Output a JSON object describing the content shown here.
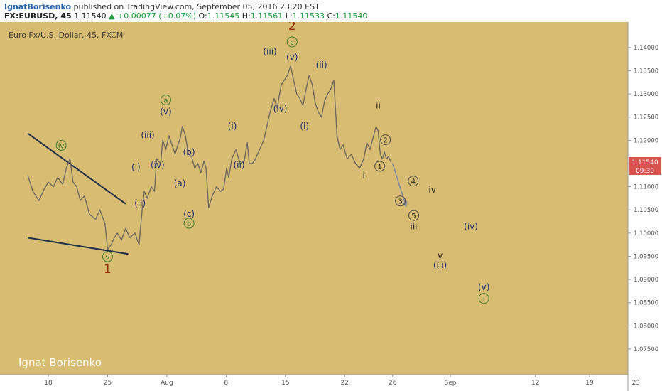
{
  "header": {
    "author": "IgnatBorisenko",
    "published_text": "published on TradingView.com, September 05, 2016 23:20 EST",
    "symbol": "FX:EURUSD, 45",
    "last": "1.11540",
    "change": "▲ +0.00077 (+0.07%)",
    "o_label": "O:",
    "o_value": "1.11545",
    "h_label": "H:",
    "h_value": "1.11561",
    "l_label": "L:",
    "l_value": "1.11533",
    "c_label": "C:",
    "c_value": "1.11540"
  },
  "chart_data": {
    "type": "line",
    "title": "Euro Fx/U.S. Dollar, 45, FXCM",
    "watermark": "Ignat Borisenko",
    "ylim": [
      1.0707,
      1.1455
    ],
    "xlim": [
      0,
      1050
    ],
    "x_ticks": [
      {
        "label": "18",
        "x": 0
      },
      {
        "label": "25",
        "x": 115
      },
      {
        "label": "Aug",
        "x": 230
      },
      {
        "label": "8",
        "x": 345
      },
      {
        "label": "15",
        "x": 460
      },
      {
        "label": "22",
        "x": 575
      },
      {
        "label": "26",
        "x": 668
      },
      {
        "label": "Sep",
        "x": 780
      },
      {
        "label": "12",
        "x": 945
      },
      {
        "label": "19",
        "x": 1050
      },
      {
        "label": "23",
        "x": 1140
      }
    ],
    "y_ticks": [
      "1.14000",
      "1.13500",
      "1.13000",
      "1.12500",
      "1.12000",
      "1.11500",
      "1.11000",
      "1.10500",
      "1.10000",
      "1.09500",
      "1.09000",
      "1.08500",
      "1.08000",
      "1.07500"
    ],
    "last_price": "1.11540",
    "countdown": "09:30",
    "colors": {
      "background": "#d8bc72",
      "candle": "#6e6a62",
      "trendline": "#1d2e4a",
      "blue_label": "#1a2f78",
      "red_label": "#9b2a0c",
      "green_label": "#3f7a2c",
      "price_tag": "#d9534f"
    },
    "series": [
      {
        "points": [
          [
            -40,
            1.1125
          ],
          [
            -30,
            1.109
          ],
          [
            -18,
            1.107
          ],
          [
            -8,
            1.1095
          ],
          [
            0,
            1.111
          ],
          [
            10,
            1.11
          ],
          [
            18,
            1.112
          ],
          [
            28,
            1.1105
          ],
          [
            35,
            1.114
          ],
          [
            42,
            1.116
          ],
          [
            48,
            1.111
          ],
          [
            55,
            1.11
          ],
          [
            62,
            1.107
          ],
          [
            70,
            1.108
          ],
          [
            80,
            1.104
          ],
          [
            92,
            1.103
          ],
          [
            100,
            1.105
          ],
          [
            110,
            1.102
          ],
          [
            115,
            1.0965
          ],
          [
            122,
            1.0975
          ],
          [
            128,
            1.099
          ],
          [
            134,
            1.1
          ],
          [
            142,
            1.0985
          ],
          [
            150,
            1.101
          ],
          [
            158,
            1.099
          ],
          [
            168,
            1.1
          ],
          [
            176,
            1.0975
          ],
          [
            182,
            1.105
          ],
          [
            186,
            1.109
          ],
          [
            192,
            1.1075
          ],
          [
            200,
            1.11
          ],
          [
            206,
            1.109
          ],
          [
            210,
            1.116
          ],
          [
            218,
            1.115
          ],
          [
            222,
            1.12
          ],
          [
            228,
            1.118
          ],
          [
            234,
            1.121
          ],
          [
            240,
            1.119
          ],
          [
            246,
            1.117
          ],
          [
            250,
            1.1185
          ],
          [
            256,
            1.1205
          ],
          [
            260,
            1.123
          ],
          [
            266,
            1.121
          ],
          [
            272,
            1.117
          ],
          [
            278,
            1.1165
          ],
          [
            284,
            1.114
          ],
          [
            290,
            1.115
          ],
          [
            296,
            1.113
          ],
          [
            302,
            1.1155
          ],
          [
            306,
            1.114
          ],
          [
            311,
            1.1055
          ],
          [
            318,
            1.108
          ],
          [
            326,
            1.11
          ],
          [
            334,
            1.109
          ],
          [
            340,
            1.1095
          ],
          [
            346,
            1.114
          ],
          [
            350,
            1.112
          ],
          [
            356,
            1.116
          ],
          [
            364,
            1.118
          ],
          [
            372,
            1.115
          ],
          [
            380,
            1.1155
          ],
          [
            386,
            1.1195
          ],
          [
            390,
            1.115
          ],
          [
            396,
            1.115
          ],
          [
            402,
            1.116
          ],
          [
            410,
            1.118
          ],
          [
            418,
            1.12
          ],
          [
            424,
            1.123
          ],
          [
            430,
            1.126
          ],
          [
            438,
            1.129
          ],
          [
            444,
            1.127
          ],
          [
            452,
            1.132
          ],
          [
            458,
            1.133
          ],
          [
            464,
            1.134
          ],
          [
            470,
            1.136
          ],
          [
            476,
            1.133
          ],
          [
            482,
            1.13
          ],
          [
            488,
            1.129
          ],
          [
            494,
            1.1275
          ],
          [
            500,
            1.131
          ],
          [
            506,
            1.134
          ],
          [
            512,
            1.132
          ],
          [
            518,
            1.128
          ],
          [
            524,
            1.126
          ],
          [
            530,
            1.125
          ],
          [
            536,
            1.1285
          ],
          [
            542,
            1.13
          ],
          [
            548,
            1.131
          ],
          [
            554,
            1.133
          ],
          [
            560,
            1.121
          ],
          [
            566,
            1.118
          ],
          [
            572,
            1.119
          ],
          [
            580,
            1.116
          ],
          [
            588,
            1.117
          ],
          [
            596,
            1.115
          ],
          [
            604,
            1.114
          ],
          [
            612,
            1.116
          ],
          [
            618,
            1.1195
          ],
          [
            624,
            1.118
          ],
          [
            630,
            1.1205
          ],
          [
            636,
            1.123
          ],
          [
            640,
            1.122
          ],
          [
            644,
            1.117
          ],
          [
            648,
            1.116
          ],
          [
            652,
            1.1175
          ],
          [
            656,
            1.116
          ],
          [
            660,
            1.1165
          ],
          [
            664,
            1.1155
          ],
          [
            666,
            1.1154
          ]
        ]
      }
    ],
    "projection": [
      [
        668,
        1.115
      ],
      [
        694,
        1.1058
      ]
    ],
    "trendlines": [
      [
        [
          -40,
          1.1215
        ],
        [
          150,
          1.1063
        ]
      ],
      [
        [
          -40,
          1.099
        ],
        [
          155,
          1.0955
        ]
      ]
    ],
    "wave_labels": [
      {
        "text": "iv",
        "x": 25,
        "y": 1.1183,
        "color": "green",
        "circle": true
      },
      {
        "text": "v",
        "x": 115,
        "y": 1.0943,
        "color": "green",
        "circle": true
      },
      {
        "text": "1",
        "x": 115,
        "y": 1.0914,
        "color": "red",
        "big": true
      },
      {
        "text": "(i)",
        "x": 170,
        "y": 1.1136,
        "color": "blue"
      },
      {
        "text": "(ii)",
        "x": 178,
        "y": 1.1058,
        "color": "blue"
      },
      {
        "text": "(iii)",
        "x": 193,
        "y": 1.1205,
        "color": "blue"
      },
      {
        "text": "(iv)",
        "x": 212,
        "y": 1.1141,
        "color": "blue"
      },
      {
        "text": "(v)",
        "x": 228,
        "y": 1.1256,
        "color": "blue"
      },
      {
        "text": "a",
        "x": 228,
        "y": 1.1281,
        "color": "green",
        "circle": true
      },
      {
        "text": "(a)",
        "x": 255,
        "y": 1.1101,
        "color": "blue"
      },
      {
        "text": "(b)",
        "x": 273,
        "y": 1.1168,
        "color": "blue"
      },
      {
        "text": "(c)",
        "x": 273,
        "y": 1.1035,
        "color": "blue"
      },
      {
        "text": "b",
        "x": 273,
        "y": 1.1015,
        "color": "green",
        "circle": true
      },
      {
        "text": "(i)",
        "x": 357,
        "y": 1.1224,
        "color": "blue"
      },
      {
        "text": "(ii)",
        "x": 370,
        "y": 1.1141,
        "color": "blue"
      },
      {
        "text": "(iii)",
        "x": 430,
        "y": 1.1385,
        "color": "blue"
      },
      {
        "text": "2",
        "x": 473,
        "y": 1.1438,
        "color": "red",
        "big": true
      },
      {
        "text": "c",
        "x": 473,
        "y": 1.1406,
        "color": "green",
        "circle": true
      },
      {
        "text": "(v)",
        "x": 473,
        "y": 1.1373,
        "color": "blue"
      },
      {
        "text": "(iv)",
        "x": 450,
        "y": 1.1262,
        "color": "blue"
      },
      {
        "text": "(i)",
        "x": 497,
        "y": 1.1224,
        "color": "blue"
      },
      {
        "text": "(ii)",
        "x": 530,
        "y": 1.1356,
        "color": "blue"
      },
      {
        "text": "ii",
        "x": 640,
        "y": 1.1269,
        "color": "black"
      },
      {
        "text": "2",
        "x": 654,
        "y": 1.1195,
        "color": "black",
        "circle": true
      },
      {
        "text": "1",
        "x": 643,
        "y": 1.1138,
        "color": "black",
        "circle": true
      },
      {
        "text": "i",
        "x": 612,
        "y": 1.1118,
        "color": "black"
      },
      {
        "text": "4",
        "x": 708,
        "y": 1.1106,
        "color": "black",
        "circle": true
      },
      {
        "text": "iv",
        "x": 745,
        "y": 1.1087,
        "color": "black"
      },
      {
        "text": "3",
        "x": 683,
        "y": 1.1063,
        "color": "black",
        "circle": true
      },
      {
        "text": "5",
        "x": 709,
        "y": 1.1032,
        "color": "black",
        "circle": true
      },
      {
        "text": "iii",
        "x": 709,
        "y": 1.1008,
        "color": "black"
      },
      {
        "text": "(iv)",
        "x": 820,
        "y": 1.1008,
        "color": "blue"
      },
      {
        "text": "v",
        "x": 760,
        "y": 1.0945,
        "color": "black"
      },
      {
        "text": "(iii)",
        "x": 760,
        "y": 1.0925,
        "color": "blue"
      },
      {
        "text": "(v)",
        "x": 845,
        "y": 1.0877,
        "color": "blue"
      },
      {
        "text": "i",
        "x": 845,
        "y": 1.0853,
        "color": "green",
        "circle": true
      }
    ]
  }
}
